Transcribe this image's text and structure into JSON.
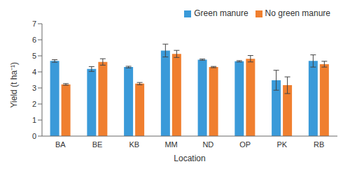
{
  "chart_data": {
    "type": "bar",
    "x_label": "Location",
    "y_label": "Yield (t ha⁻¹)",
    "categories": [
      "BA",
      "BE",
      "KB",
      "MM",
      "ND",
      "OP",
      "PK",
      "RB"
    ],
    "series": [
      {
        "name": "Green manure",
        "color": "#3a9ad9",
        "values": [
          4.68,
          4.18,
          4.3,
          5.33,
          4.76,
          4.66,
          3.48,
          4.68
        ],
        "errors": [
          0.08,
          0.15,
          0.05,
          0.4,
          0.04,
          0.04,
          0.62,
          0.38
        ]
      },
      {
        "name": "No green manure",
        "color": "#f07f2f",
        "values": [
          3.22,
          4.62,
          3.27,
          5.12,
          4.3,
          4.82,
          3.17,
          4.48
        ],
        "errors": [
          0.05,
          0.2,
          0.07,
          0.22,
          0.04,
          0.2,
          0.52,
          0.18
        ]
      }
    ],
    "ylim": [
      0,
      7
    ],
    "yticks": [
      0,
      1,
      2,
      3,
      4,
      5,
      6,
      7
    ],
    "grid": false,
    "legend": "top"
  }
}
